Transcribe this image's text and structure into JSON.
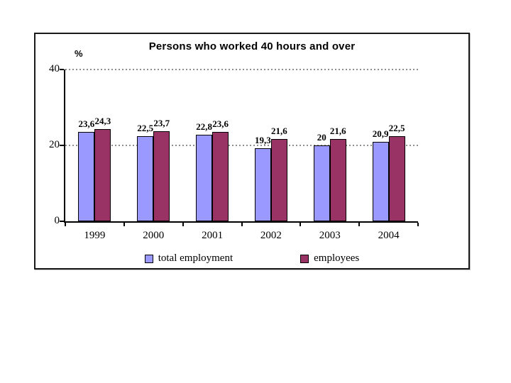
{
  "chart_data": {
    "type": "bar",
    "title": "Persons who worked 40 hours and over",
    "ylabel": "%",
    "xlabel": "",
    "categories": [
      "1999",
      "2000",
      "2001",
      "2002",
      "2003",
      "2004"
    ],
    "series": [
      {
        "name": "total employment",
        "color": "#9999FF",
        "values": [
          23.6,
          22.5,
          22.8,
          19.3,
          20,
          20.9
        ],
        "labels": [
          "23,6",
          "22,5",
          "22,8",
          "19,3",
          "20",
          "20,9"
        ]
      },
      {
        "name": "employees",
        "color": "#993366",
        "values": [
          24.3,
          23.7,
          23.6,
          21.6,
          21.6,
          22.5
        ],
        "labels": [
          "24,3",
          "23,7",
          "23,6",
          "21,6",
          "21,6",
          "22,5"
        ]
      }
    ],
    "ylim": [
      0,
      40
    ],
    "yticks": [
      0,
      20,
      40
    ],
    "gridlines": [
      20,
      40
    ],
    "grid_style": "dotted horizontal",
    "legend_position": "bottom",
    "decimal_separator": ","
  },
  "colors": {
    "total_employment_fill": "#9999FF",
    "employees_fill": "#993366",
    "bar_border": "#000000",
    "axis": "#000000",
    "gridline": "#8f8f8f",
    "frame_border": "#1a1a1a",
    "background": "#ffffff"
  }
}
